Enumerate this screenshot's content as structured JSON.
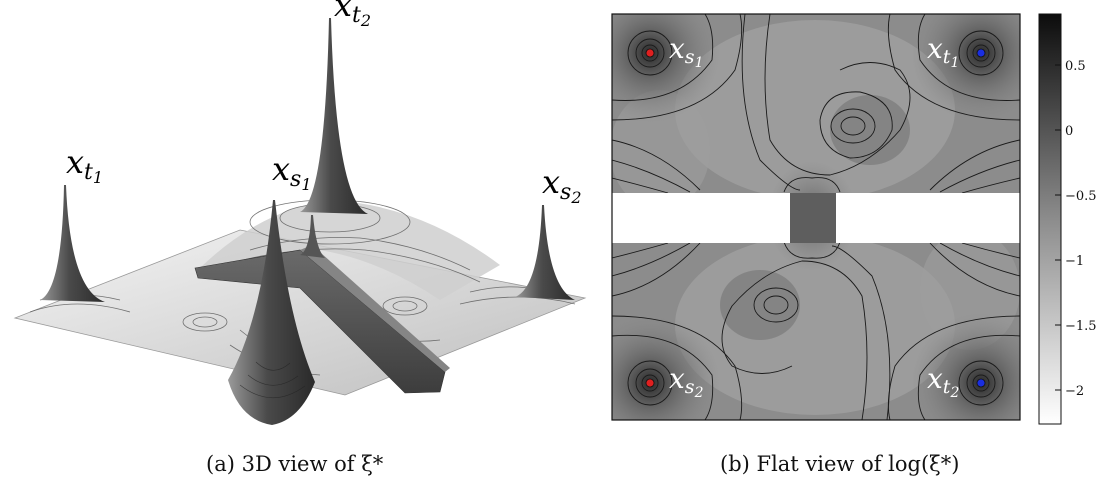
{
  "panel_a": {
    "caption": "(a) 3D view of ξ*",
    "labels": {
      "t1": {
        "base": "x",
        "sub": "t",
        "subsub": "1"
      },
      "t2": {
        "base": "x",
        "sub": "t",
        "subsub": "2"
      },
      "s1": {
        "base": "x",
        "sub": "s",
        "subsub": "1"
      },
      "s2": {
        "base": "x",
        "sub": "s",
        "subsub": "2"
      }
    }
  },
  "panel_b": {
    "caption": "(b) Flat view of log(ξ*)",
    "labels": {
      "s1": {
        "base": "x",
        "sub": "s",
        "subsub": "1"
      },
      "t1": {
        "base": "x",
        "sub": "t",
        "subsub": "1"
      },
      "s2": {
        "base": "x",
        "sub": "s",
        "subsub": "2"
      },
      "t2": {
        "base": "x",
        "sub": "t",
        "subsub": "2"
      }
    },
    "colorbar_ticks": [
      "0.5",
      "0",
      "−0.5",
      "−1",
      "−1.5",
      "−2"
    ],
    "colors": {
      "source_marker": "#e02020",
      "target_marker": "#1a2ee0"
    }
  }
}
